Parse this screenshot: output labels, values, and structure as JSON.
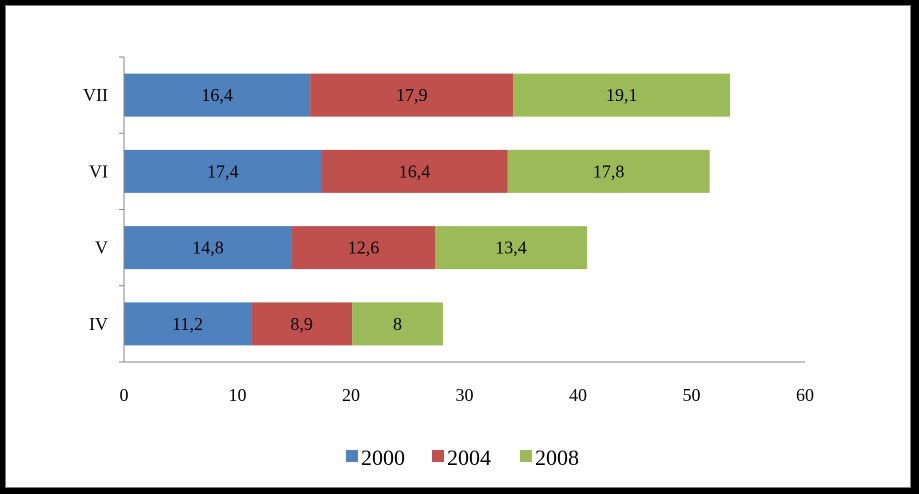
{
  "chart_data": {
    "type": "bar",
    "orientation": "horizontal",
    "stacked": true,
    "categories": [
      "VII",
      "VI",
      "V",
      "IV"
    ],
    "series": [
      {
        "name": "2000",
        "color": "#4f81bd",
        "values": [
          16.4,
          17.4,
          14.8,
          11.2
        ],
        "labels": [
          "16,4",
          "17,4",
          "14,8",
          "11,2"
        ]
      },
      {
        "name": "2004",
        "color": "#c0504d",
        "values": [
          17.9,
          16.4,
          12.6,
          8.9
        ],
        "labels": [
          "17,9",
          "16,4",
          "12,6",
          "8,9"
        ]
      },
      {
        "name": "2008",
        "color": "#9bbb59",
        "values": [
          19.1,
          17.8,
          13.4,
          8
        ],
        "labels": [
          "19,1",
          "17,8",
          "13,4",
          "8"
        ]
      }
    ],
    "xlim": [
      0,
      60
    ],
    "xticks": [
      0,
      10,
      20,
      30,
      40,
      50,
      60
    ],
    "xtick_labels": [
      "0",
      "10",
      "20",
      "30",
      "40",
      "50",
      "60"
    ],
    "grid": false,
    "legend": "bottom",
    "title": "",
    "xlabel": "",
    "ylabel": ""
  }
}
